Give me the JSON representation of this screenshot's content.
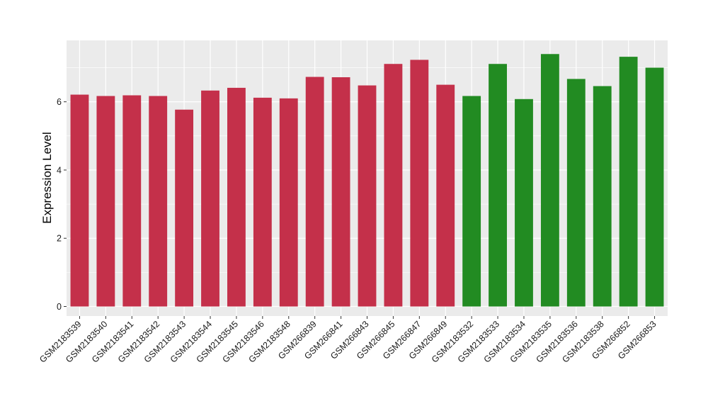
{
  "chart_data": {
    "type": "bar",
    "title": "",
    "xlabel": "",
    "ylabel": "Expression Level",
    "ylim": [
      -0.28,
      7.8
    ],
    "yticks": [
      0,
      2,
      4,
      6
    ],
    "grid": true,
    "legend": "none",
    "panel_background": "#ebebeb",
    "grid_color": "#ffffff",
    "categories": [
      "GSM2183539",
      "GSM2183540",
      "GSM2183541",
      "GSM2183542",
      "GSM2183543",
      "GSM2183544",
      "GSM2183545",
      "GSM2183546",
      "GSM2183548",
      "GSM266839",
      "GSM266841",
      "GSM266843",
      "GSM266845",
      "GSM266847",
      "GSM266849",
      "GSM2183532",
      "GSM2183533",
      "GSM2183534",
      "GSM2183535",
      "GSM2183536",
      "GSM2183538",
      "GSM266852",
      "GSM266853"
    ],
    "values": [
      6.21,
      6.17,
      6.19,
      6.17,
      5.77,
      6.33,
      6.41,
      6.12,
      6.1,
      6.73,
      6.72,
      6.48,
      7.11,
      7.23,
      6.5,
      6.17,
      7.11,
      6.08,
      7.4,
      6.67,
      6.46,
      7.32,
      7.0
    ],
    "groups": [
      "red",
      "red",
      "red",
      "red",
      "red",
      "red",
      "red",
      "red",
      "red",
      "red",
      "red",
      "red",
      "red",
      "red",
      "red",
      "green",
      "green",
      "green",
      "green",
      "green",
      "green",
      "green",
      "green"
    ],
    "colors": {
      "red": "#c4304a",
      "green": "#228b22"
    }
  }
}
